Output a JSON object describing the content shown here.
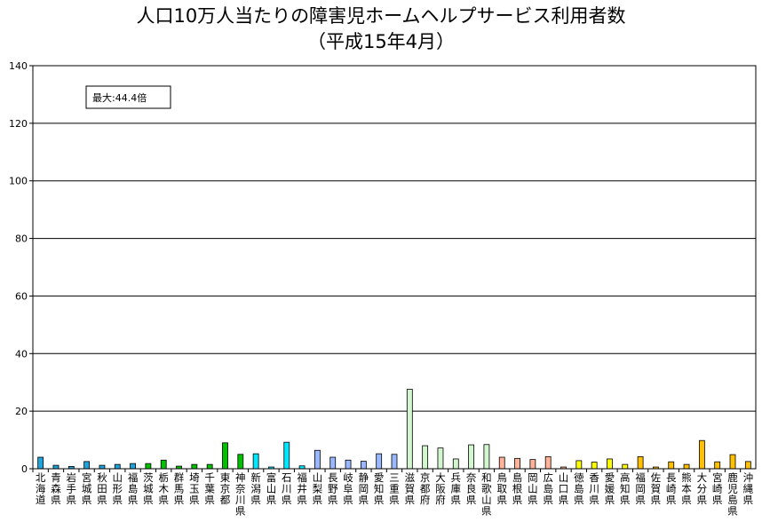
{
  "chart_data": {
    "type": "bar",
    "title": "人口10万人当たりの障害児ホームヘルプサービス利用者数",
    "subtitle": "（平成15年4月）",
    "xlabel": "",
    "ylabel": "",
    "ylim": [
      0,
      140
    ],
    "yticks": [
      0,
      20,
      40,
      60,
      80,
      100,
      120,
      140
    ],
    "grid": true,
    "annotation": "最大:44.4倍",
    "categories": [
      "北海道",
      "青森県",
      "岩手県",
      "宮城県",
      "秋田県",
      "山形県",
      "福島県",
      "茨城県",
      "栃木県",
      "群馬県",
      "埼玉県",
      "千葉県",
      "東京都",
      "神奈川県",
      "新潟県",
      "富山県",
      "石川県",
      "福井県",
      "山梨県",
      "長野県",
      "岐阜県",
      "静岡県",
      "愛知県",
      "三重県",
      "滋賀県",
      "京都府",
      "大阪府",
      "兵庫県",
      "奈良県",
      "和歌山県",
      "鳥取県",
      "島根県",
      "岡山県",
      "広島県",
      "山口県",
      "徳島県",
      "香川県",
      "愛媛県",
      "高知県",
      "福岡県",
      "佐賀県",
      "長崎県",
      "熊本県",
      "大分県",
      "宮崎県",
      "鹿児島県",
      "沖縄県"
    ],
    "values": [
      4.0,
      1.2,
      0.8,
      2.5,
      1.2,
      1.5,
      1.8,
      1.8,
      3.0,
      0.9,
      1.5,
      1.5,
      9.0,
      5.0,
      5.2,
      0.6,
      9.2,
      1.0,
      6.4,
      4.0,
      3.0,
      2.6,
      5.2,
      5.0,
      27.6,
      8.0,
      7.2,
      3.4,
      8.3,
      8.4,
      4.0,
      3.6,
      3.2,
      4.2,
      0.6,
      2.8,
      2.3,
      3.4,
      1.5,
      4.2,
      0.6,
      2.4,
      1.5,
      9.8,
      2.4,
      4.9,
      2.5
    ],
    "colors": [
      "#1fa3dc",
      "#1fa3dc",
      "#1fa3dc",
      "#1fa3dc",
      "#1fa3dc",
      "#1fa3dc",
      "#1fa3dc",
      "#00c000",
      "#00c000",
      "#00c000",
      "#00c000",
      "#00c000",
      "#00c000",
      "#00c000",
      "#00e8ff",
      "#00e8ff",
      "#00e8ff",
      "#00e8ff",
      "#99b8ff",
      "#99b8ff",
      "#99b8ff",
      "#99b8ff",
      "#99b8ff",
      "#99b8ff",
      "#d2f7cf",
      "#d2f7cf",
      "#d2f7cf",
      "#d2f7cf",
      "#d2f7cf",
      "#d2f7cf",
      "#ffb49a",
      "#ffb49a",
      "#ffb49a",
      "#ffb49a",
      "#ffb49a",
      "#ffff00",
      "#ffff00",
      "#ffff00",
      "#ffff00",
      "#ffc000",
      "#ffc000",
      "#ffc000",
      "#ffc000",
      "#ffc000",
      "#ffc000",
      "#ffc000",
      "#ffc000"
    ]
  }
}
